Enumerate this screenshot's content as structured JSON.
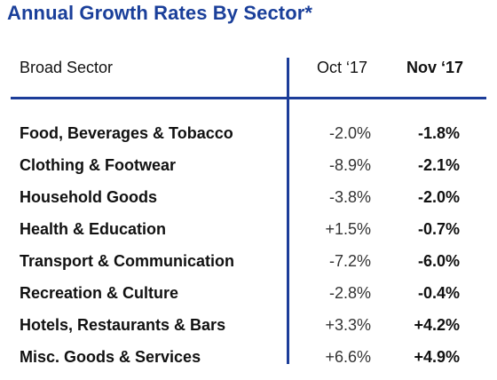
{
  "chart_data": {
    "type": "table",
    "title": "Annual Growth Rates By Sector*",
    "columns": [
      "Broad Sector",
      "Oct ‘17",
      "Nov ‘17"
    ],
    "rows": [
      {
        "sector": "Food, Beverages & Tobacco",
        "oct": "-2.0%",
        "nov": "-1.8%"
      },
      {
        "sector": "Clothing & Footwear",
        "oct": "-8.9%",
        "nov": "-2.1%"
      },
      {
        "sector": "Household Goods",
        "oct": "-3.8%",
        "nov": "-2.0%"
      },
      {
        "sector": "Health & Education",
        "oct": "+1.5%",
        "nov": "-0.7%"
      },
      {
        "sector": "Transport & Communication",
        "oct": "-7.2%",
        "nov": "-6.0%"
      },
      {
        "sector": "Recreation & Culture",
        "oct": "-2.8%",
        "nov": "-0.4%"
      },
      {
        "sector": "Hotels, Restaurants & Bars",
        "oct": "+3.3%",
        "nov": "+4.2%"
      },
      {
        "sector": "Misc. Goods & Services",
        "oct": "+6.6%",
        "nov": "+4.9%"
      }
    ]
  },
  "colors": {
    "title": "#1a3f9a",
    "rules": "#1c3d99"
  }
}
